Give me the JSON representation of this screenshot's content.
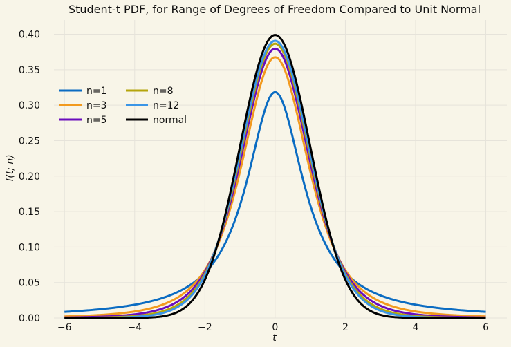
{
  "chart_data": {
    "type": "line",
    "title": "Student-t PDF, for Range of Degrees of Freedom Compared to Unit Normal",
    "xlabel": "t",
    "ylabel": "f(t; n)",
    "xlim": [
      -6.3,
      6.6
    ],
    "ylim": [
      0,
      0.42
    ],
    "x_ticks": [
      -6,
      -4,
      -2,
      0,
      2,
      4,
      6
    ],
    "x_tick_labels": [
      "−6",
      "−4",
      "−2",
      "0",
      "2",
      "4",
      "6"
    ],
    "y_ticks": [
      0,
      0.05,
      0.1,
      0.15,
      0.2,
      0.25,
      0.3,
      0.35,
      0.4
    ],
    "y_tick_labels": [
      "0.00",
      "0.05",
      "0.10",
      "0.15",
      "0.20",
      "0.25",
      "0.30",
      "0.35",
      "0.40"
    ],
    "grid": true,
    "legend_position": "upper-left",
    "legend_columns": 2,
    "x_range": [
      -6,
      6
    ],
    "series": [
      {
        "name": "n=1",
        "df": 1,
        "color": "#0b6cc2"
      },
      {
        "name": "n=3",
        "df": 3,
        "color": "#f29a1e"
      },
      {
        "name": "n=5",
        "df": 5,
        "color": "#6a0dbd"
      },
      {
        "name": "n=8",
        "df": 8,
        "color": "#b5a50c"
      },
      {
        "name": "n=12",
        "df": 12,
        "color": "#3a95e6"
      },
      {
        "name": "normal",
        "df": null,
        "color": "#000000"
      }
    ]
  },
  "colors": {
    "background": "#f8f5e8",
    "grid": "#e6e3da"
  }
}
